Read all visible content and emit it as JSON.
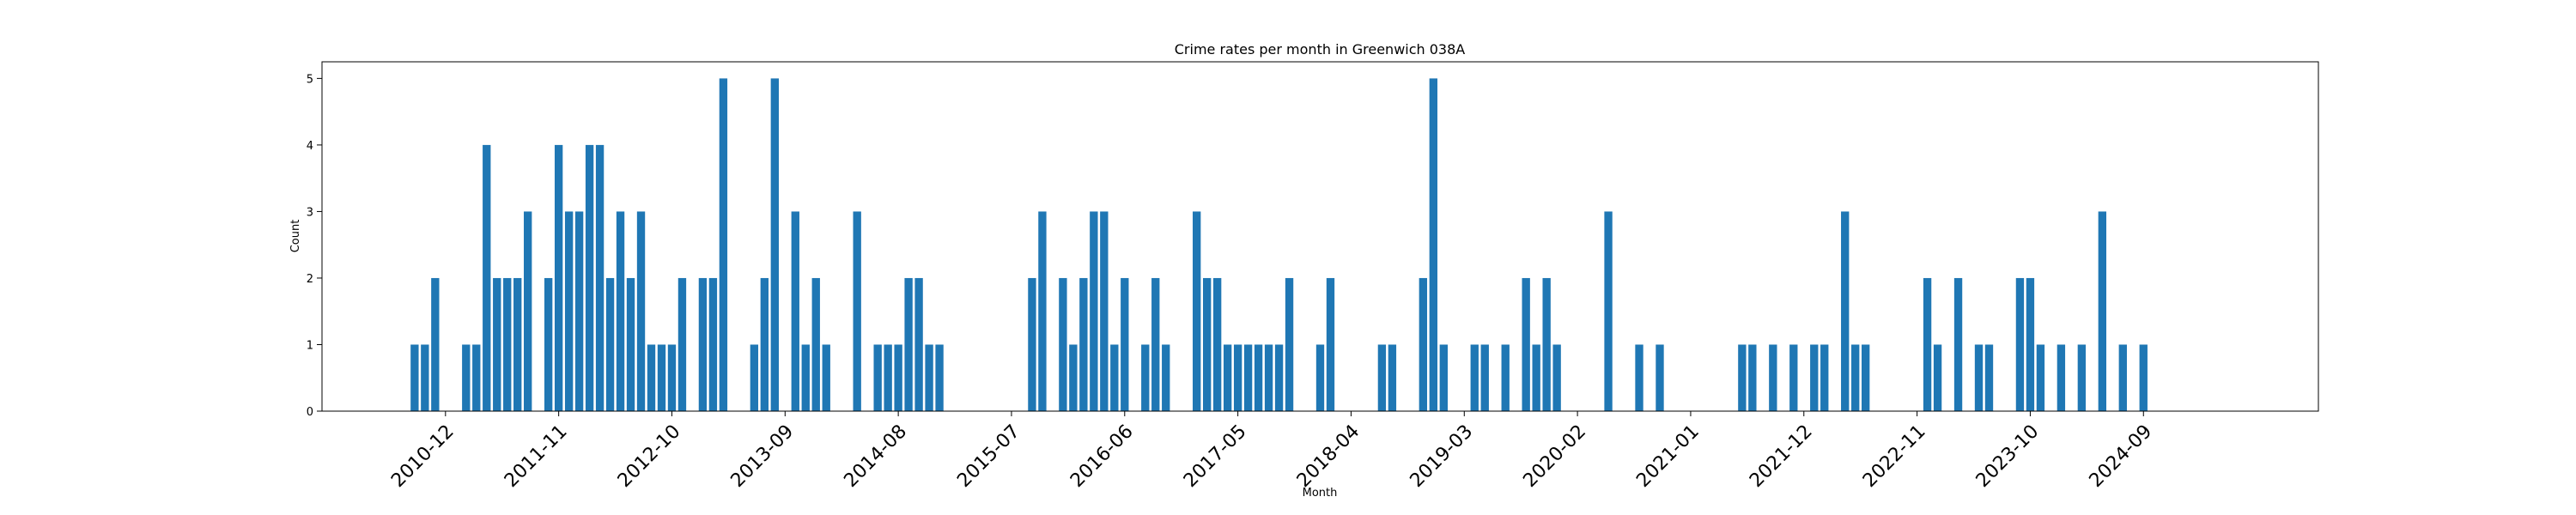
{
  "chart_data": {
    "type": "bar",
    "title": "Crime rates per month in Greenwich 038A",
    "xlabel": "Month",
    "ylabel": "Count",
    "ylim": [
      0,
      5.25
    ],
    "yticks": [
      0,
      1,
      2,
      3,
      4,
      5
    ],
    "xlim": [
      "2009-12",
      "2026-02"
    ],
    "xticks": [
      "2010-12",
      "2011-11",
      "2012-10",
      "2013-09",
      "2014-08",
      "2015-07",
      "2016-06",
      "2017-05",
      "2018-04",
      "2019-03",
      "2020-02",
      "2021-01",
      "2021-12",
      "2022-11",
      "2023-10",
      "2024-09"
    ],
    "bar_color": "#1f77b4",
    "grid": false,
    "legend": "none",
    "x": [
      "2010-09",
      "2010-10",
      "2010-11",
      "2011-02",
      "2011-03",
      "2011-04",
      "2011-05",
      "2011-06",
      "2011-07",
      "2011-08",
      "2011-10",
      "2011-11",
      "2011-12",
      "2012-01",
      "2012-02",
      "2012-03",
      "2012-04",
      "2012-05",
      "2012-06",
      "2012-07",
      "2012-08",
      "2012-09",
      "2012-10",
      "2012-11",
      "2013-01",
      "2013-02",
      "2013-03",
      "2013-06",
      "2013-07",
      "2013-08",
      "2013-10",
      "2013-11",
      "2013-12",
      "2014-01",
      "2014-04",
      "2014-06",
      "2014-07",
      "2014-08",
      "2014-09",
      "2014-10",
      "2014-11",
      "2014-12",
      "2015-09",
      "2015-10",
      "2015-12",
      "2016-01",
      "2016-02",
      "2016-03",
      "2016-04",
      "2016-05",
      "2016-06",
      "2016-08",
      "2016-09",
      "2016-10",
      "2017-01",
      "2017-02",
      "2017-03",
      "2017-04",
      "2017-05",
      "2017-06",
      "2017-07",
      "2017-08",
      "2017-09",
      "2017-10",
      "2018-01",
      "2018-02",
      "2018-07",
      "2018-08",
      "2018-11",
      "2018-12",
      "2019-01",
      "2019-04",
      "2019-05",
      "2019-07",
      "2019-09",
      "2019-10",
      "2019-11",
      "2019-12",
      "2020-05",
      "2020-08",
      "2020-10",
      "2021-06",
      "2021-07",
      "2021-09",
      "2021-11",
      "2022-01",
      "2022-02",
      "2022-04",
      "2022-05",
      "2022-06",
      "2022-12",
      "2023-01",
      "2023-03",
      "2023-05",
      "2023-06",
      "2023-09",
      "2023-10",
      "2023-11",
      "2024-01",
      "2024-03",
      "2024-05",
      "2024-07",
      "2024-09"
    ],
    "values": [
      1,
      1,
      2,
      1,
      1,
      4,
      2,
      2,
      2,
      3,
      2,
      4,
      3,
      3,
      4,
      4,
      2,
      3,
      2,
      3,
      1,
      1,
      1,
      2,
      2,
      2,
      5,
      1,
      2,
      5,
      3,
      1,
      2,
      1,
      3,
      1,
      1,
      1,
      2,
      2,
      1,
      1,
      2,
      3,
      2,
      1,
      2,
      3,
      3,
      1,
      2,
      1,
      2,
      1,
      3,
      2,
      2,
      1,
      1,
      1,
      1,
      1,
      1,
      2,
      1,
      2,
      1,
      1,
      2,
      5,
      1,
      1,
      1,
      1,
      2,
      1,
      2,
      1,
      3,
      1,
      1,
      1,
      1,
      1,
      1,
      1,
      1,
      3,
      1,
      1,
      2,
      1,
      2,
      1,
      1,
      2,
      2,
      1,
      1,
      1,
      3,
      1,
      1
    ]
  }
}
